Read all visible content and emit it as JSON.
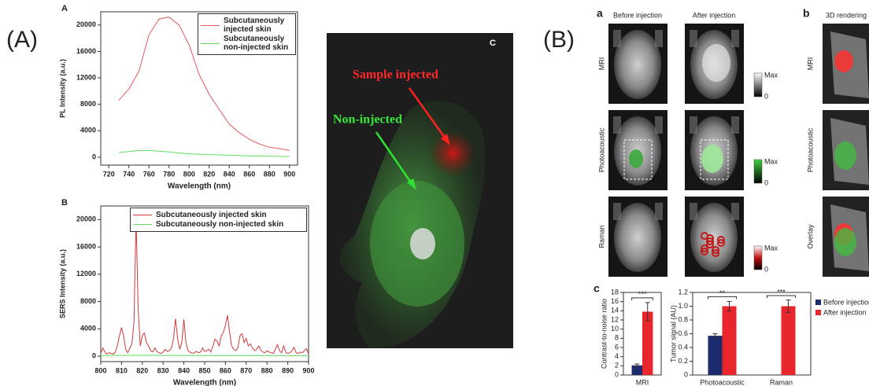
{
  "figure_labels": {
    "A": "(A)",
    "B": "(B)"
  },
  "fluorescence": {
    "label": "C",
    "sample": "Sample injected",
    "non_injected": "Non-injected"
  },
  "imaging": {
    "panel_a": "a",
    "panel_b": "b",
    "panel_c": "c",
    "col_before": "Before injection",
    "col_after": "After injection",
    "col_3d": "3D rendering",
    "rows": [
      "MRI",
      "Photoacoustic",
      "Raman"
    ],
    "rows_3d": [
      "MRI",
      "Photoacoustic",
      "Overlay"
    ],
    "colorbar_max": [
      "Max",
      "Max",
      "Max"
    ],
    "colorbar_min": [
      "0",
      "0",
      "0"
    ]
  },
  "chart_data": [
    {
      "type": "line",
      "label": "A",
      "xlabel": "Wavelength (nm)",
      "ylabel": "PL Intensity (a.u.)",
      "xlim": [
        712,
        908
      ],
      "ylim": [
        -1200,
        22000
      ],
      "xticks": [
        720,
        740,
        760,
        780,
        800,
        820,
        840,
        860,
        880,
        900
      ],
      "yticks": [
        0,
        4000,
        8000,
        12000,
        16000,
        20000
      ],
      "legend": "upper right",
      "series": [
        {
          "name": "Subcutaneously injected skin",
          "color": "#e05a5a",
          "x": [
            730,
            740,
            750,
            760,
            770,
            780,
            790,
            800,
            810,
            820,
            830,
            840,
            850,
            860,
            870,
            880,
            890,
            900
          ],
          "values": [
            8600,
            10300,
            13000,
            18500,
            20900,
            21200,
            20000,
            17000,
            12500,
            9500,
            7200,
            5000,
            3700,
            2700,
            2000,
            1500,
            1300,
            1000
          ]
        },
        {
          "name": "Subcutaneously non-injected skin",
          "color": "#5ee05e",
          "x": [
            730,
            750,
            760,
            770,
            780,
            800,
            820,
            840,
            860,
            880,
            900
          ],
          "values": [
            700,
            1000,
            1000,
            900,
            800,
            500,
            400,
            300,
            200,
            150,
            100
          ]
        }
      ]
    },
    {
      "type": "line",
      "label": "B",
      "xlabel": "Wavelength (nm)",
      "ylabel": "SERS Intensity (a.u.)",
      "xlim": [
        800,
        900
      ],
      "ylim": [
        -800,
        22000
      ],
      "xticks": [
        800,
        810,
        820,
        830,
        840,
        850,
        860,
        870,
        880,
        890,
        900
      ],
      "yticks": [
        0,
        4000,
        8000,
        12000,
        16000,
        20000
      ],
      "legend": "upper right",
      "series": [
        {
          "name": "Subcutaneously injected skin",
          "color": "#d03a3a",
          "x": [
            800,
            801,
            802,
            803,
            804,
            805,
            806,
            807,
            808,
            809,
            810,
            811,
            812,
            813,
            814,
            815,
            816,
            817,
            818,
            819,
            820,
            821,
            822,
            823,
            824,
            825,
            826,
            827,
            828,
            829,
            830,
            831,
            832,
            833,
            834,
            835,
            836,
            837,
            838,
            839,
            840,
            841,
            842,
            843,
            844,
            845,
            846,
            847,
            848,
            849,
            850,
            851,
            852,
            853,
            854,
            855,
            856,
            857,
            858,
            859,
            860,
            861,
            862,
            863,
            864,
            865,
            866,
            867,
            868,
            869,
            870,
            871,
            872,
            873,
            874,
            875,
            876,
            877,
            878,
            879,
            880,
            881,
            882,
            883,
            884,
            885,
            886,
            887,
            888,
            889,
            890,
            891,
            892,
            893,
            894,
            895,
            896,
            897,
            898,
            899,
            900
          ],
          "values": [
            400,
            1200,
            600,
            300,
            500,
            400,
            300,
            600,
            1500,
            3000,
            4200,
            3000,
            1000,
            500,
            1200,
            1800,
            5000,
            20200,
            7000,
            1500,
            3000,
            3400,
            2000,
            1500,
            800,
            600,
            1200,
            700,
            500,
            400,
            600,
            1000,
            700,
            800,
            1200,
            2500,
            5500,
            2500,
            1000,
            2000,
            5400,
            2000,
            800,
            600,
            400,
            500,
            700,
            500,
            600,
            1200,
            700,
            800,
            1000,
            600,
            1500,
            2500,
            2200,
            1500,
            3000,
            3500,
            4500,
            6000,
            3500,
            1500,
            1000,
            800,
            1200,
            3000,
            3300,
            2000,
            2600,
            1500,
            1800,
            1200,
            800,
            1000,
            1500,
            900,
            600,
            500,
            800,
            600,
            500,
            400,
            1000,
            1700,
            800,
            500,
            1500,
            600,
            400,
            500,
            800,
            1300,
            500,
            400,
            600,
            500,
            800,
            1100,
            300
          ]
        },
        {
          "name": "Subcutaneously non-injected skin",
          "color": "#5ee05e",
          "x": [
            800,
            820,
            840,
            860,
            880,
            900
          ],
          "values": [
            100,
            120,
            100,
            80,
            80,
            60
          ]
        }
      ]
    },
    {
      "type": "bar",
      "ylabel": "Contrast-to-noise ratio",
      "categories": [
        "MRI"
      ],
      "ylim": [
        0,
        18
      ],
      "yticks": [
        0,
        2,
        4,
        6,
        8,
        10,
        12,
        14,
        16,
        18
      ],
      "annotations": [
        "***"
      ],
      "series": [
        {
          "color": "#1c2a6e",
          "values": [
            2.1
          ],
          "errors": [
            0.3
          ]
        },
        {
          "color": "#e8262b",
          "values": [
            13.8
          ],
          "errors": [
            2.0
          ]
        }
      ]
    },
    {
      "type": "bar",
      "ylabel": "Tumor signal (AU)",
      "categories": [
        "Photoacoustic",
        "Raman"
      ],
      "ylim": [
        0,
        1.2
      ],
      "yticks": [
        0,
        0.2,
        0.4,
        0.6,
        0.8,
        {
          "value": 1,
          "label": "1.0"
        },
        1.2
      ],
      "annotations": [
        "**",
        "***"
      ],
      "legend": "right",
      "series": [
        {
          "name": "Before injection",
          "color": "#1c2a6e",
          "values": [
            0.57,
            null
          ],
          "errors": [
            0.03,
            null
          ]
        },
        {
          "name": "After injection",
          "color": "#e8262b",
          "values": [
            1.0,
            1.0
          ],
          "errors": [
            0.07,
            0.09
          ]
        }
      ]
    }
  ]
}
